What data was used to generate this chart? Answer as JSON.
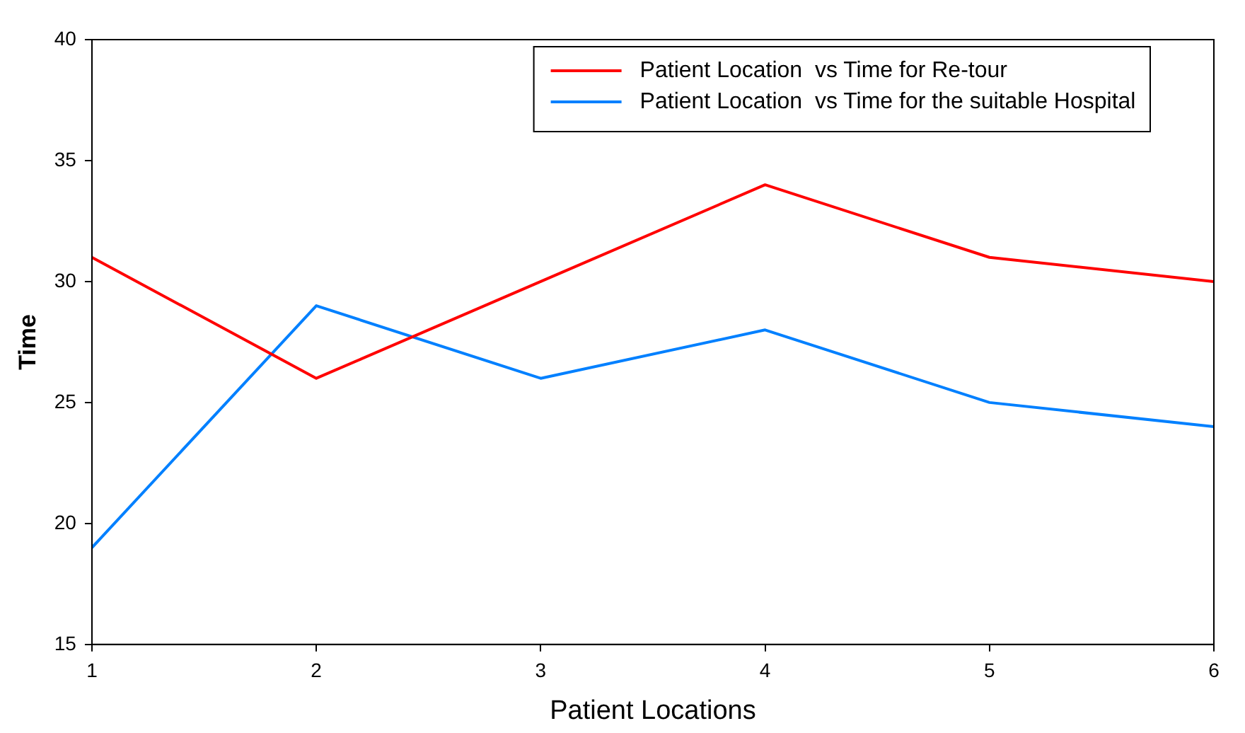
{
  "chart_data": {
    "type": "line",
    "xlabel": "Patient Locations",
    "ylabel": "Time",
    "x": [
      1,
      2,
      3,
      4,
      5,
      6
    ],
    "series": [
      {
        "name": "Patient Location  vs Time for Re-tour",
        "color": "#ff0000",
        "values": [
          31,
          26,
          30,
          34,
          31,
          30
        ]
      },
      {
        "name": "Patient Location  vs Time for the suitable Hospital",
        "color": "#0080ff",
        "values": [
          19,
          29,
          26,
          28,
          25,
          24
        ]
      }
    ],
    "xlim": [
      1,
      6
    ],
    "xticks": [
      1,
      2,
      3,
      4,
      5,
      6
    ],
    "ylim": [
      15,
      40
    ],
    "yticks": [
      15,
      20,
      25,
      30,
      35,
      40
    ],
    "grid": false,
    "legend": "top right",
    "marker": "none",
    "line_style": "solid"
  }
}
